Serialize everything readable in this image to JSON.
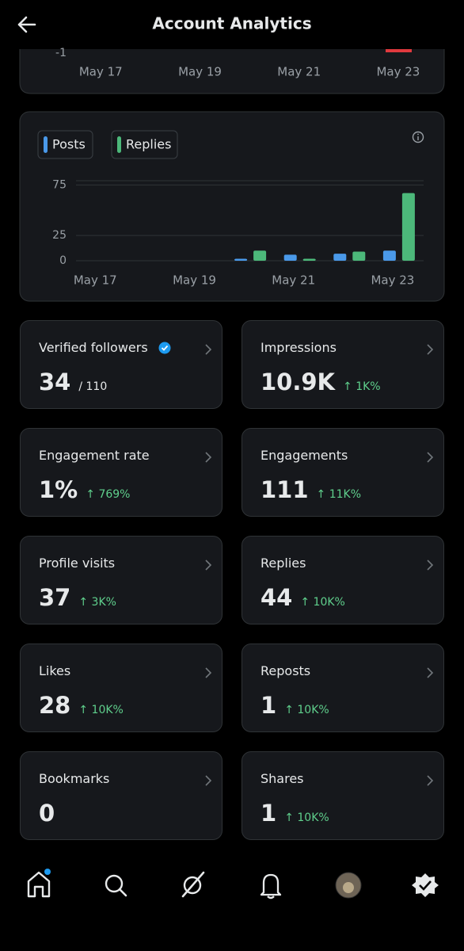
{
  "header": {
    "title": "Account Analytics"
  },
  "chart_data": [
    {
      "type": "bar-partial",
      "categories": [
        "May 17",
        null,
        "May 19",
        null,
        "May 21",
        null,
        "May 23"
      ],
      "yticks": [
        -1
      ]
    },
    {
      "type": "bar",
      "categories": [
        "May 17",
        null,
        "May 19",
        null,
        "May 21",
        null,
        "May 23"
      ],
      "series": [
        {
          "name": "Posts",
          "color": "#4a99e9",
          "values": [
            0,
            0,
            0,
            2,
            6,
            7,
            10
          ]
        },
        {
          "name": "Replies",
          "color": "#4cb87a",
          "values": [
            0,
            0,
            0,
            10,
            2,
            9,
            67
          ]
        }
      ],
      "ylim": [
        0,
        80
      ],
      "yticks": [
        0,
        25,
        75
      ],
      "grid": true
    }
  ],
  "cards": [
    {
      "label": "Verified followers",
      "value": "34",
      "total": "/ 110"
    },
    {
      "label": "Impressions",
      "value": "10.9K",
      "change": "1K%"
    },
    {
      "label": "Engagement rate",
      "value": "1%",
      "change": "769%"
    },
    {
      "label": "Engagements",
      "value": "111",
      "change": "11K%"
    },
    {
      "label": "Profile visits",
      "value": "37",
      "change": "3K%"
    },
    {
      "label": "Replies",
      "value": "44",
      "change": "10K%"
    },
    {
      "label": "Likes",
      "value": "28",
      "change": "10K%"
    },
    {
      "label": "Reposts",
      "value": "1",
      "change": "10K%"
    },
    {
      "label": "Bookmarks",
      "value": "0"
    },
    {
      "label": "Shares",
      "value": "1",
      "change": "10K%"
    }
  ]
}
